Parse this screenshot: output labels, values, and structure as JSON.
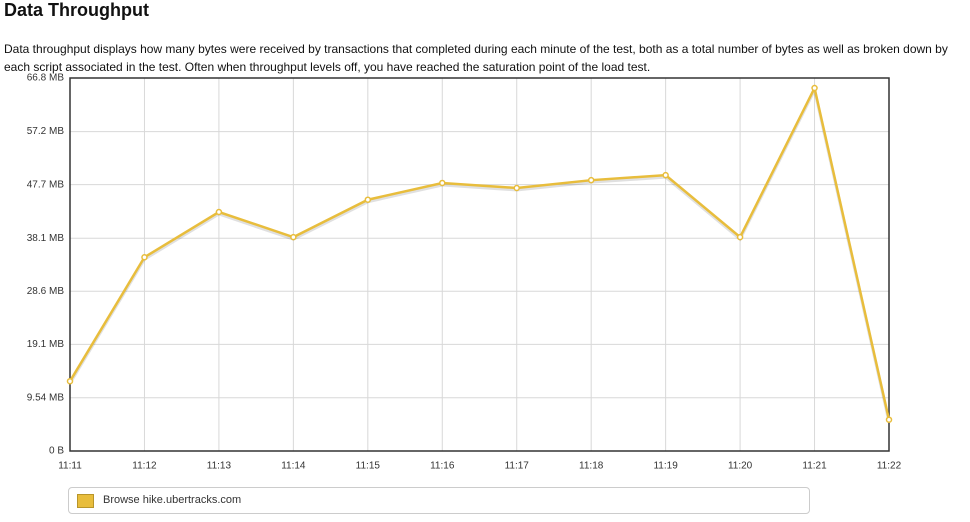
{
  "chart_data": {
    "type": "line",
    "title": "Data Throughput",
    "subtitle": "Data throughput displays how many bytes were received by transactions that completed during each minute of the test, both as a total number of bytes as well as broken down by each script associated in the test. Often when throughput levels off, you have reached the saturation point of the load test.",
    "categories": [
      "11:11",
      "11:12",
      "11:13",
      "11:14",
      "11:15",
      "11:16",
      "11:17",
      "11:18",
      "11:19",
      "11:20",
      "11:21",
      "11:22"
    ],
    "series": [
      {
        "name": "Browse hike.ubertracks.com",
        "color": "#e8bd3c",
        "values": [
          12.5,
          34.7,
          42.8,
          38.3,
          45.0,
          48.0,
          47.1,
          48.5,
          49.4,
          38.3,
          65.0,
          5.6
        ]
      }
    ],
    "ylim": [
      0,
      66.8
    ],
    "yticks": [
      {
        "value": 0,
        "label": "0 B"
      },
      {
        "value": 9.54,
        "label": "9.54 MB"
      },
      {
        "value": 19.1,
        "label": "19.1 MB"
      },
      {
        "value": 28.6,
        "label": "28.6 MB"
      },
      {
        "value": 38.1,
        "label": "38.1 MB"
      },
      {
        "value": 47.7,
        "label": "47.7 MB"
      },
      {
        "value": 57.2,
        "label": "57.2 MB"
      },
      {
        "value": 66.8,
        "label": "66.8 MB"
      }
    ],
    "grid": true
  }
}
